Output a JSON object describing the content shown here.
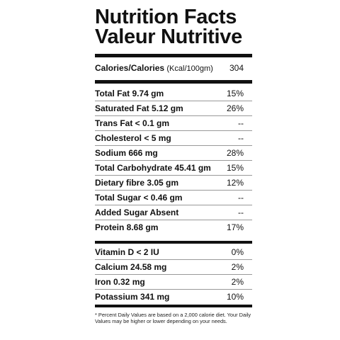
{
  "title_en": "Nutrition Facts",
  "title_fr": "Valeur Nutritive",
  "calories": {
    "label": "Calories/Calories",
    "unit": "(Kcal/100gm)",
    "value": "304"
  },
  "nutrients_group1": [
    {
      "name": "Total Fat 9.74 gm",
      "value": "15%"
    },
    {
      "name": "Saturated Fat 5.12 gm",
      "value": "26%"
    },
    {
      "name": "Trans Fat < 0.1 gm",
      "value": "--"
    },
    {
      "name": "Cholesterol < 5 mg",
      "value": "--"
    },
    {
      "name": "Sodium 666 mg",
      "value": "28%"
    },
    {
      "name": "Total Carbohydrate 45.41 gm",
      "value": "15%"
    },
    {
      "name": "Dietary fibre 3.05 gm",
      "value": "12%"
    },
    {
      "name": "Total Sugar < 0.46 gm",
      "value": "--"
    },
    {
      "name": "Added Sugar Absent",
      "value": "--"
    },
    {
      "name": "Protein 8.68 gm",
      "value": "17%"
    }
  ],
  "nutrients_group2": [
    {
      "name": "Vitamin D < 2 IU",
      "value": "0%"
    },
    {
      "name": "Calcium 24.58 mg",
      "value": "2%"
    },
    {
      "name": "Iron 0.32 mg",
      "value": "2%"
    },
    {
      "name": "Potassium 341 mg",
      "value": "10%"
    }
  ],
  "footnote": "* Percent Daily Values are based on a 2,000 calorie diet. Your Daily Values may be higher or lower depending on your needs."
}
